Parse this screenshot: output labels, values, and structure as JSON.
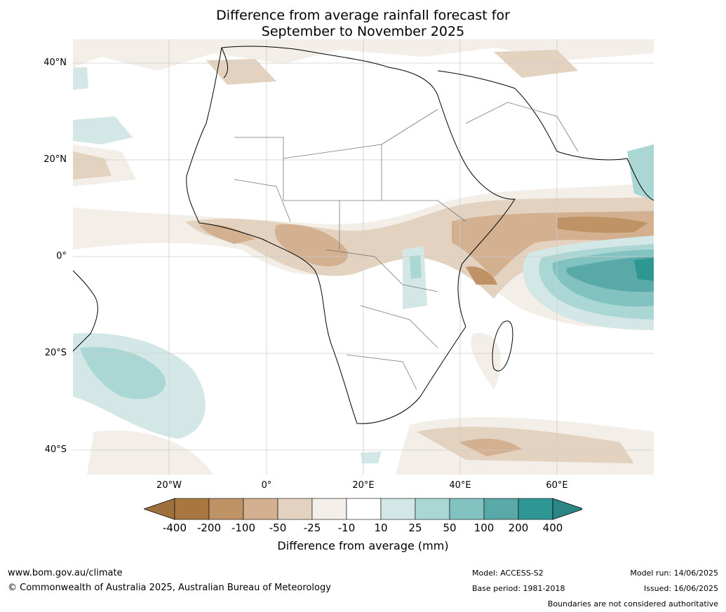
{
  "title_line1": "Difference from average rainfall forecast for",
  "title_line2": "September to November 2025",
  "lat_labels": [
    "40°N",
    "20°N",
    "0°",
    "20°S",
    "40°S"
  ],
  "lon_labels": [
    "20°W",
    "0°",
    "20°E",
    "40°E",
    "60°E"
  ],
  "colorbar": {
    "colors": [
      "#a87640",
      "#bf9366",
      "#d2b090",
      "#e3d2c0",
      "#f3eee8",
      "#ffffff",
      "#d3e8e6",
      "#aad6d4",
      "#82c2c0",
      "#58a9a7",
      "#2e9794"
    ],
    "left_arrow_color": "#a0703c",
    "right_arrow_color": "#2a8785",
    "labels": [
      "-400",
      "-200",
      "-100",
      "-50",
      "-25",
      "-10",
      "10",
      "25",
      "50",
      "100",
      "200",
      "400"
    ],
    "title": "Difference from average (mm)"
  },
  "footer": {
    "url": "www.bom.gov.au/climate",
    "copyright": "© Commonwealth of Australia 2025, Australian Bureau of Meteorology",
    "model": "Model: ACCESS-S2",
    "base_period": "Base period: 1981-2018",
    "model_run": "Model run: 14/06/2025",
    "issued": "Issued: 16/06/2025",
    "disclaimer": "Boundaries are not considered authoritative"
  }
}
